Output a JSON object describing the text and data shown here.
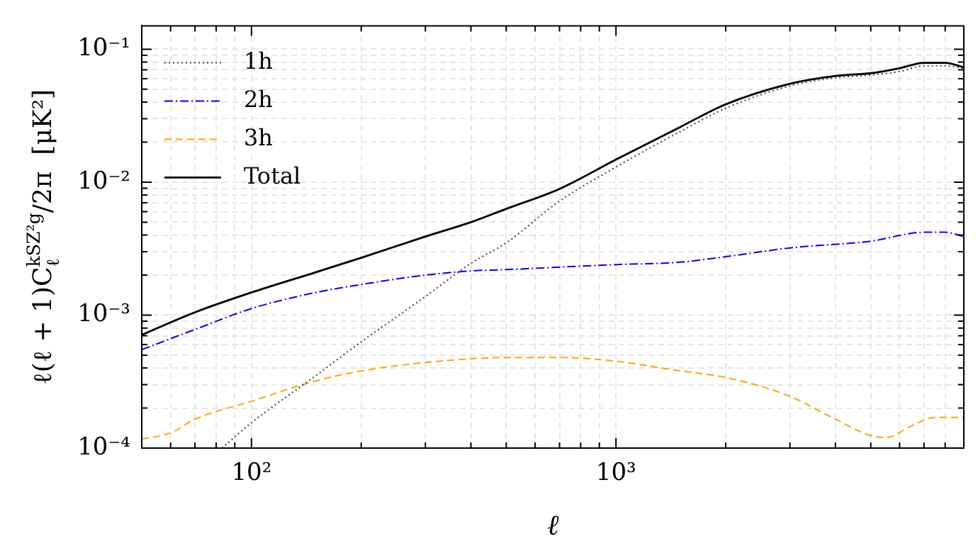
{
  "chart_data": {
    "type": "line",
    "xlabel": "ℓ",
    "ylabel": "ℓ(ℓ + 1)C$_{ℓ}$$^{kSZ²g}$/2π  [μK²]",
    "log": "xy",
    "xlim": [
      50,
      9000
    ],
    "ylim": [
      0.0001,
      0.15
    ],
    "xticks": [
      {
        "value": 50,
        "label": null
      },
      {
        "value": 60,
        "label": null
      },
      {
        "value": 70,
        "label": null
      },
      {
        "value": 80,
        "label": null
      },
      {
        "value": 90,
        "label": null
      },
      {
        "value": 100,
        "label": "10²"
      },
      {
        "value": 200,
        "label": null
      },
      {
        "value": 300,
        "label": null
      },
      {
        "value": 400,
        "label": null
      },
      {
        "value": 500,
        "label": null
      },
      {
        "value": 600,
        "label": null
      },
      {
        "value": 700,
        "label": null
      },
      {
        "value": 800,
        "label": null
      },
      {
        "value": 900,
        "label": null
      },
      {
        "value": 1000,
        "label": "10³"
      },
      {
        "value": 2000,
        "label": null
      },
      {
        "value": 3000,
        "label": null
      },
      {
        "value": 4000,
        "label": null
      },
      {
        "value": 5000,
        "label": null
      },
      {
        "value": 6000,
        "label": null
      },
      {
        "value": 7000,
        "label": null
      },
      {
        "value": 8000,
        "label": null
      },
      {
        "value": 9000,
        "label": null
      }
    ],
    "yticks": [
      {
        "value": 0.0001,
        "label": "10⁻⁴"
      },
      {
        "value": 0.0002,
        "label": null
      },
      {
        "value": 0.0003,
        "label": null
      },
      {
        "value": 0.0004,
        "label": null
      },
      {
        "value": 0.0005,
        "label": null
      },
      {
        "value": 0.0006,
        "label": null
      },
      {
        "value": 0.0007,
        "label": null
      },
      {
        "value": 0.0008,
        "label": null
      },
      {
        "value": 0.0009,
        "label": null
      },
      {
        "value": 0.001,
        "label": "10⁻³"
      },
      {
        "value": 0.002,
        "label": null
      },
      {
        "value": 0.003,
        "label": null
      },
      {
        "value": 0.004,
        "label": null
      },
      {
        "value": 0.005,
        "label": null
      },
      {
        "value": 0.006,
        "label": null
      },
      {
        "value": 0.007,
        "label": null
      },
      {
        "value": 0.008,
        "label": null
      },
      {
        "value": 0.009,
        "label": null
      },
      {
        "value": 0.01,
        "label": "10⁻²"
      },
      {
        "value": 0.02,
        "label": null
      },
      {
        "value": 0.03,
        "label": null
      },
      {
        "value": 0.04,
        "label": null
      },
      {
        "value": 0.05,
        "label": null
      },
      {
        "value": 0.06,
        "label": null
      },
      {
        "value": 0.07,
        "label": null
      },
      {
        "value": 0.08,
        "label": null
      },
      {
        "value": 0.09,
        "label": null
      },
      {
        "value": 0.1,
        "label": "10⁻¹"
      }
    ],
    "grid": true,
    "legend": "top left",
    "marker": "none",
    "series": [
      {
        "name": "1h",
        "color": "#404040",
        "line_style": "dotted",
        "x": [
          83,
          100,
          150,
          200,
          300,
          400,
          500,
          700,
          1000,
          1500,
          2000,
          3000,
          4000,
          5000,
          6000,
          7000,
          8000,
          9000
        ],
        "values": [
          0.0001,
          0.000155,
          0.00035,
          0.00063,
          0.00138,
          0.00245,
          0.0035,
          0.0072,
          0.013,
          0.024,
          0.036,
          0.053,
          0.061,
          0.064,
          0.068,
          0.075,
          0.075,
          0.072
        ]
      },
      {
        "name": "2h",
        "color": "#0000ff",
        "line_style": "dashdot",
        "x": [
          50,
          70,
          100,
          150,
          200,
          300,
          400,
          500,
          1000,
          1500,
          2000,
          3000,
          5000,
          7000,
          8000,
          9000
        ],
        "values": [
          0.00055,
          0.00078,
          0.00112,
          0.00148,
          0.0017,
          0.002,
          0.00215,
          0.0022,
          0.0024,
          0.0025,
          0.00275,
          0.0032,
          0.0036,
          0.0042,
          0.0042,
          0.0039
        ]
      },
      {
        "name": "3h",
        "color": "#ffa500",
        "line_style": "dashed",
        "x": [
          50,
          60,
          70,
          100,
          150,
          200,
          300,
          500,
          700,
          1000,
          1500,
          2000,
          3000,
          4000,
          5000,
          5500,
          6500,
          7500,
          9000
        ],
        "values": [
          0.000117,
          0.00013,
          0.000165,
          0.000225,
          0.00032,
          0.00038,
          0.00044,
          0.00048,
          0.00048,
          0.00045,
          0.00038,
          0.00034,
          0.000245,
          0.000165,
          0.000124,
          0.00012,
          0.000148,
          0.00017,
          0.00017
        ]
      },
      {
        "name": "Total",
        "color": "#000000",
        "line_style": "solid",
        "x": [
          50,
          70,
          100,
          150,
          200,
          300,
          400,
          500,
          700,
          1000,
          1500,
          2000,
          3000,
          4000,
          5000,
          6000,
          7000,
          8000,
          9000
        ],
        "values": [
          0.00071,
          0.00105,
          0.00148,
          0.0021,
          0.0027,
          0.0039,
          0.005,
          0.0063,
          0.0089,
          0.0148,
          0.026,
          0.0385,
          0.055,
          0.063,
          0.066,
          0.072,
          0.079,
          0.079,
          0.073
        ]
      }
    ]
  }
}
